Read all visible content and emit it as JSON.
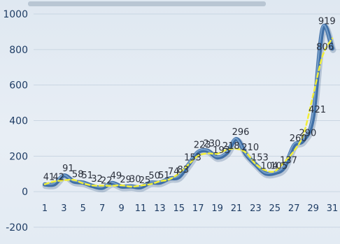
{
  "chart_data": {
    "type": "line",
    "title": "",
    "xlabel": "",
    "ylabel": "",
    "ylim": [
      -200,
      1000
    ],
    "yticks": [
      -200,
      0,
      200,
      400,
      600,
      800,
      1000
    ],
    "xticks": [
      1,
      3,
      5,
      7,
      9,
      11,
      13,
      15,
      17,
      19,
      21,
      23,
      25,
      27,
      29,
      31
    ],
    "grid": true,
    "series": [
      {
        "x": [
          1,
          2,
          3,
          4,
          5,
          6,
          7,
          8,
          9,
          10,
          11,
          12,
          13,
          14,
          15,
          16,
          17,
          18,
          19,
          20,
          21,
          22,
          23,
          24,
          25,
          26,
          27,
          28,
          29,
          30,
          31
        ],
        "values": [
          41,
          42,
          91,
          58,
          51,
          32,
          22,
          49,
          29,
          30,
          25,
          50,
          51,
          74,
          83,
          153,
          223,
          230,
          193,
          218,
          296,
          210,
          153,
          104,
          105,
          137,
          260,
          290,
          421,
          919,
          806
        ],
        "labels": [
          "41",
          "42",
          "91",
          "58",
          "51",
          "32",
          "22",
          "49",
          "29",
          "30",
          "25",
          "50",
          "51",
          "74",
          "83",
          "153",
          "223",
          "230",
          "193",
          "218",
          "296",
          "210",
          "153",
          "104",
          "105",
          "137",
          "260",
          "290",
          "421",
          "919",
          "806"
        ]
      }
    ],
    "colors": {
      "line": "#3f6fa6",
      "trend": "#f2ef3a"
    }
  }
}
